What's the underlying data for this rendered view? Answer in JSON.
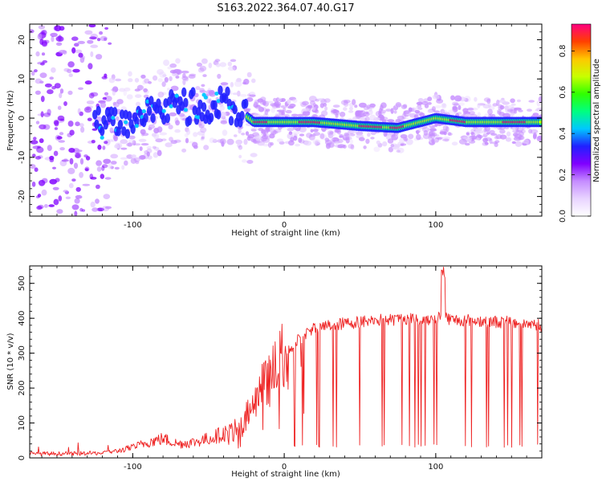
{
  "figure_title": "S163.2022.364.07.40.G17",
  "colors": {
    "line": "#ee2222",
    "axis": "#000000",
    "colormap": [
      "#ffffff",
      "#e8d4ff",
      "#c58cff",
      "#8000ff",
      "#2020ff",
      "#00c8ff",
      "#00ff80",
      "#30ff00",
      "#c8ff00",
      "#ffc800",
      "#ff4000",
      "#ff0080"
    ]
  },
  "chart_data": [
    {
      "type": "heatmap",
      "title": "",
      "xlabel": "Height of straight line (km)",
      "ylabel": "Frequency (Hz)",
      "xlim": [
        -168,
        170
      ],
      "ylim": [
        -25,
        24
      ],
      "xticks": [
        -100,
        0,
        100
      ],
      "yticks": [
        -20,
        -10,
        0,
        10,
        20
      ],
      "grid": false,
      "ridge": {
        "description_points": [
          {
            "x": -120,
            "y": -2
          },
          {
            "x": -100,
            "y": 0
          },
          {
            "x": -80,
            "y": 3
          },
          {
            "x": -60,
            "y": 3
          },
          {
            "x": -40,
            "y": 4
          },
          {
            "x": -30,
            "y": 2
          },
          {
            "x": -20,
            "y": -1
          },
          {
            "x": 0,
            "y": -1
          },
          {
            "x": 20,
            "y": -1
          },
          {
            "x": 50,
            "y": -2
          },
          {
            "x": 75,
            "y": -2.5
          },
          {
            "x": 100,
            "y": 0
          },
          {
            "x": 120,
            "y": -1
          },
          {
            "x": 150,
            "y": -1
          },
          {
            "x": 170,
            "y": -1
          }
        ],
        "peak_segments_x": [
          [
            -20,
            -10
          ],
          [
            10,
            25
          ],
          [
            50,
            65
          ],
          [
            70,
            80
          ],
          [
            110,
            120
          ],
          [
            145,
            160
          ]
        ]
      },
      "colorbar": {
        "label": "Normalized spectral amplitude",
        "range": [
          0,
          0.93
        ],
        "ticks": [
          "0.0",
          "0.2",
          "0.4",
          "0.6",
          "0.8"
        ]
      }
    },
    {
      "type": "line",
      "title": "",
      "xlabel": "Height of straight line (km)",
      "ylabel": "SNR (10 * v/v)",
      "xlim": [
        -168,
        170
      ],
      "ylim": [
        0,
        550
      ],
      "xticks": [
        -100,
        0,
        100
      ],
      "yticks": [
        0,
        100,
        200,
        300,
        400,
        500
      ],
      "grid": false,
      "series": [
        {
          "name": "",
          "x": [
            -168,
            -140,
            -120,
            -110,
            -100,
            -90,
            -80,
            -70,
            -60,
            -50,
            -40,
            -30,
            -25,
            -20,
            -15,
            -10,
            -5,
            0,
            5,
            10,
            15,
            20,
            30,
            40,
            50,
            60,
            70,
            80,
            90,
            100,
            105,
            110,
            120,
            130,
            140,
            150,
            160,
            170
          ],
          "values": [
            12,
            12,
            14,
            20,
            30,
            45,
            55,
            40,
            45,
            55,
            70,
            90,
            120,
            150,
            200,
            220,
            260,
            300,
            320,
            340,
            360,
            370,
            380,
            385,
            390,
            395,
            395,
            400,
            395,
            400,
            410,
            395,
            395,
            392,
            390,
            388,
            385,
            380
          ]
        }
      ],
      "annotations": {
        "spike_near_x": 105,
        "spike_max": 550,
        "dropouts_start_x": 5,
        "dropout_floor": 30
      }
    }
  ]
}
